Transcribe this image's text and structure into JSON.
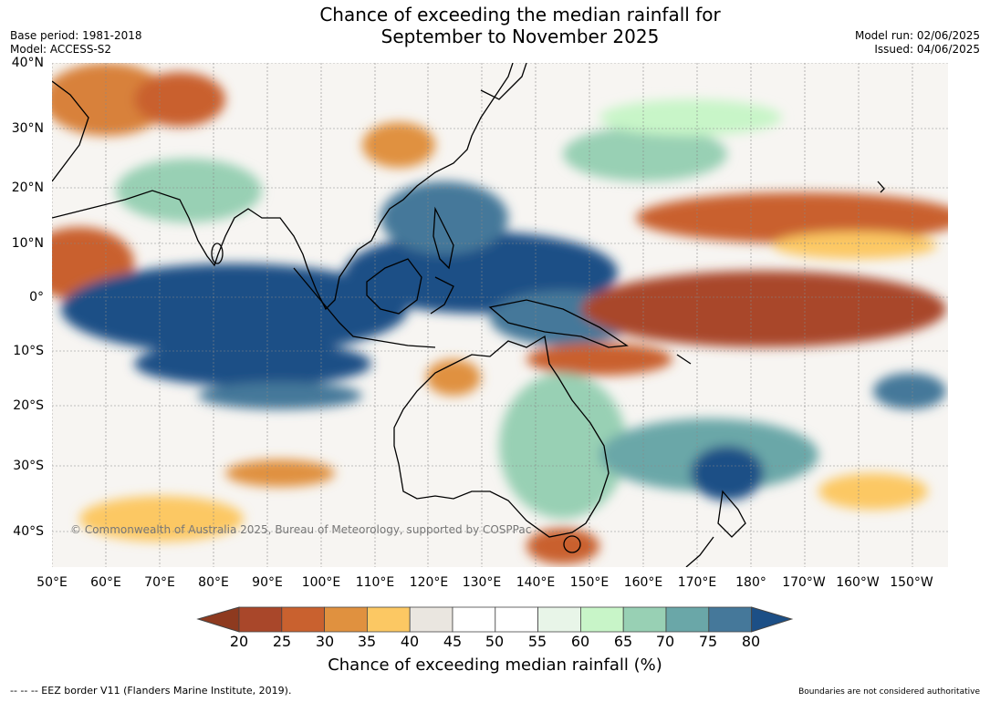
{
  "title_line1": "Chance of exceeding the median rainfall for",
  "title_line2": "September to November 2025",
  "base_period": "Base period: 1981-2018",
  "model": "Model: ACCESS-S2",
  "model_run": "Model run: 02/06/2025",
  "issued": "Issued: 04/06/2025",
  "lat_labels": [
    "40°N",
    "30°N",
    "20°N",
    "10°N",
    "0°",
    "10°S",
    "20°S",
    "30°S",
    "40°S"
  ],
  "lon_labels": [
    "50°E",
    "60°E",
    "70°E",
    "80°E",
    "90°E",
    "100°E",
    "110°E",
    "120°E",
    "130°E",
    "140°E",
    "150°E",
    "160°E",
    "170°E",
    "180°",
    "170°W",
    "160°W",
    "150°W"
  ],
  "copyright": "© Commonwealth of Australia 2025, Bureau of Meteorology, supported by COSPPac",
  "colorbar": {
    "ticks": [
      "20",
      "25",
      "30",
      "35",
      "40",
      "45",
      "50",
      "55",
      "60",
      "65",
      "70",
      "75",
      "80"
    ],
    "title": "Chance of exceeding median rainfall (%)",
    "colors": [
      "#8e3a1f",
      "#a9472a",
      "#c9612f",
      "#e0913f",
      "#fcc863",
      "#eae6e0",
      "#ffffff",
      "#ffffff",
      "#e8f5e8",
      "#c8f5c8",
      "#98d0b4",
      "#6aa7a8",
      "#45789a",
      "#1c4f86"
    ]
  },
  "footer_left": "--  --  -- EEZ border V11 (Flanders Marine Institute, 2019).",
  "footer_right": "Boundaries are not considered authoritative"
}
